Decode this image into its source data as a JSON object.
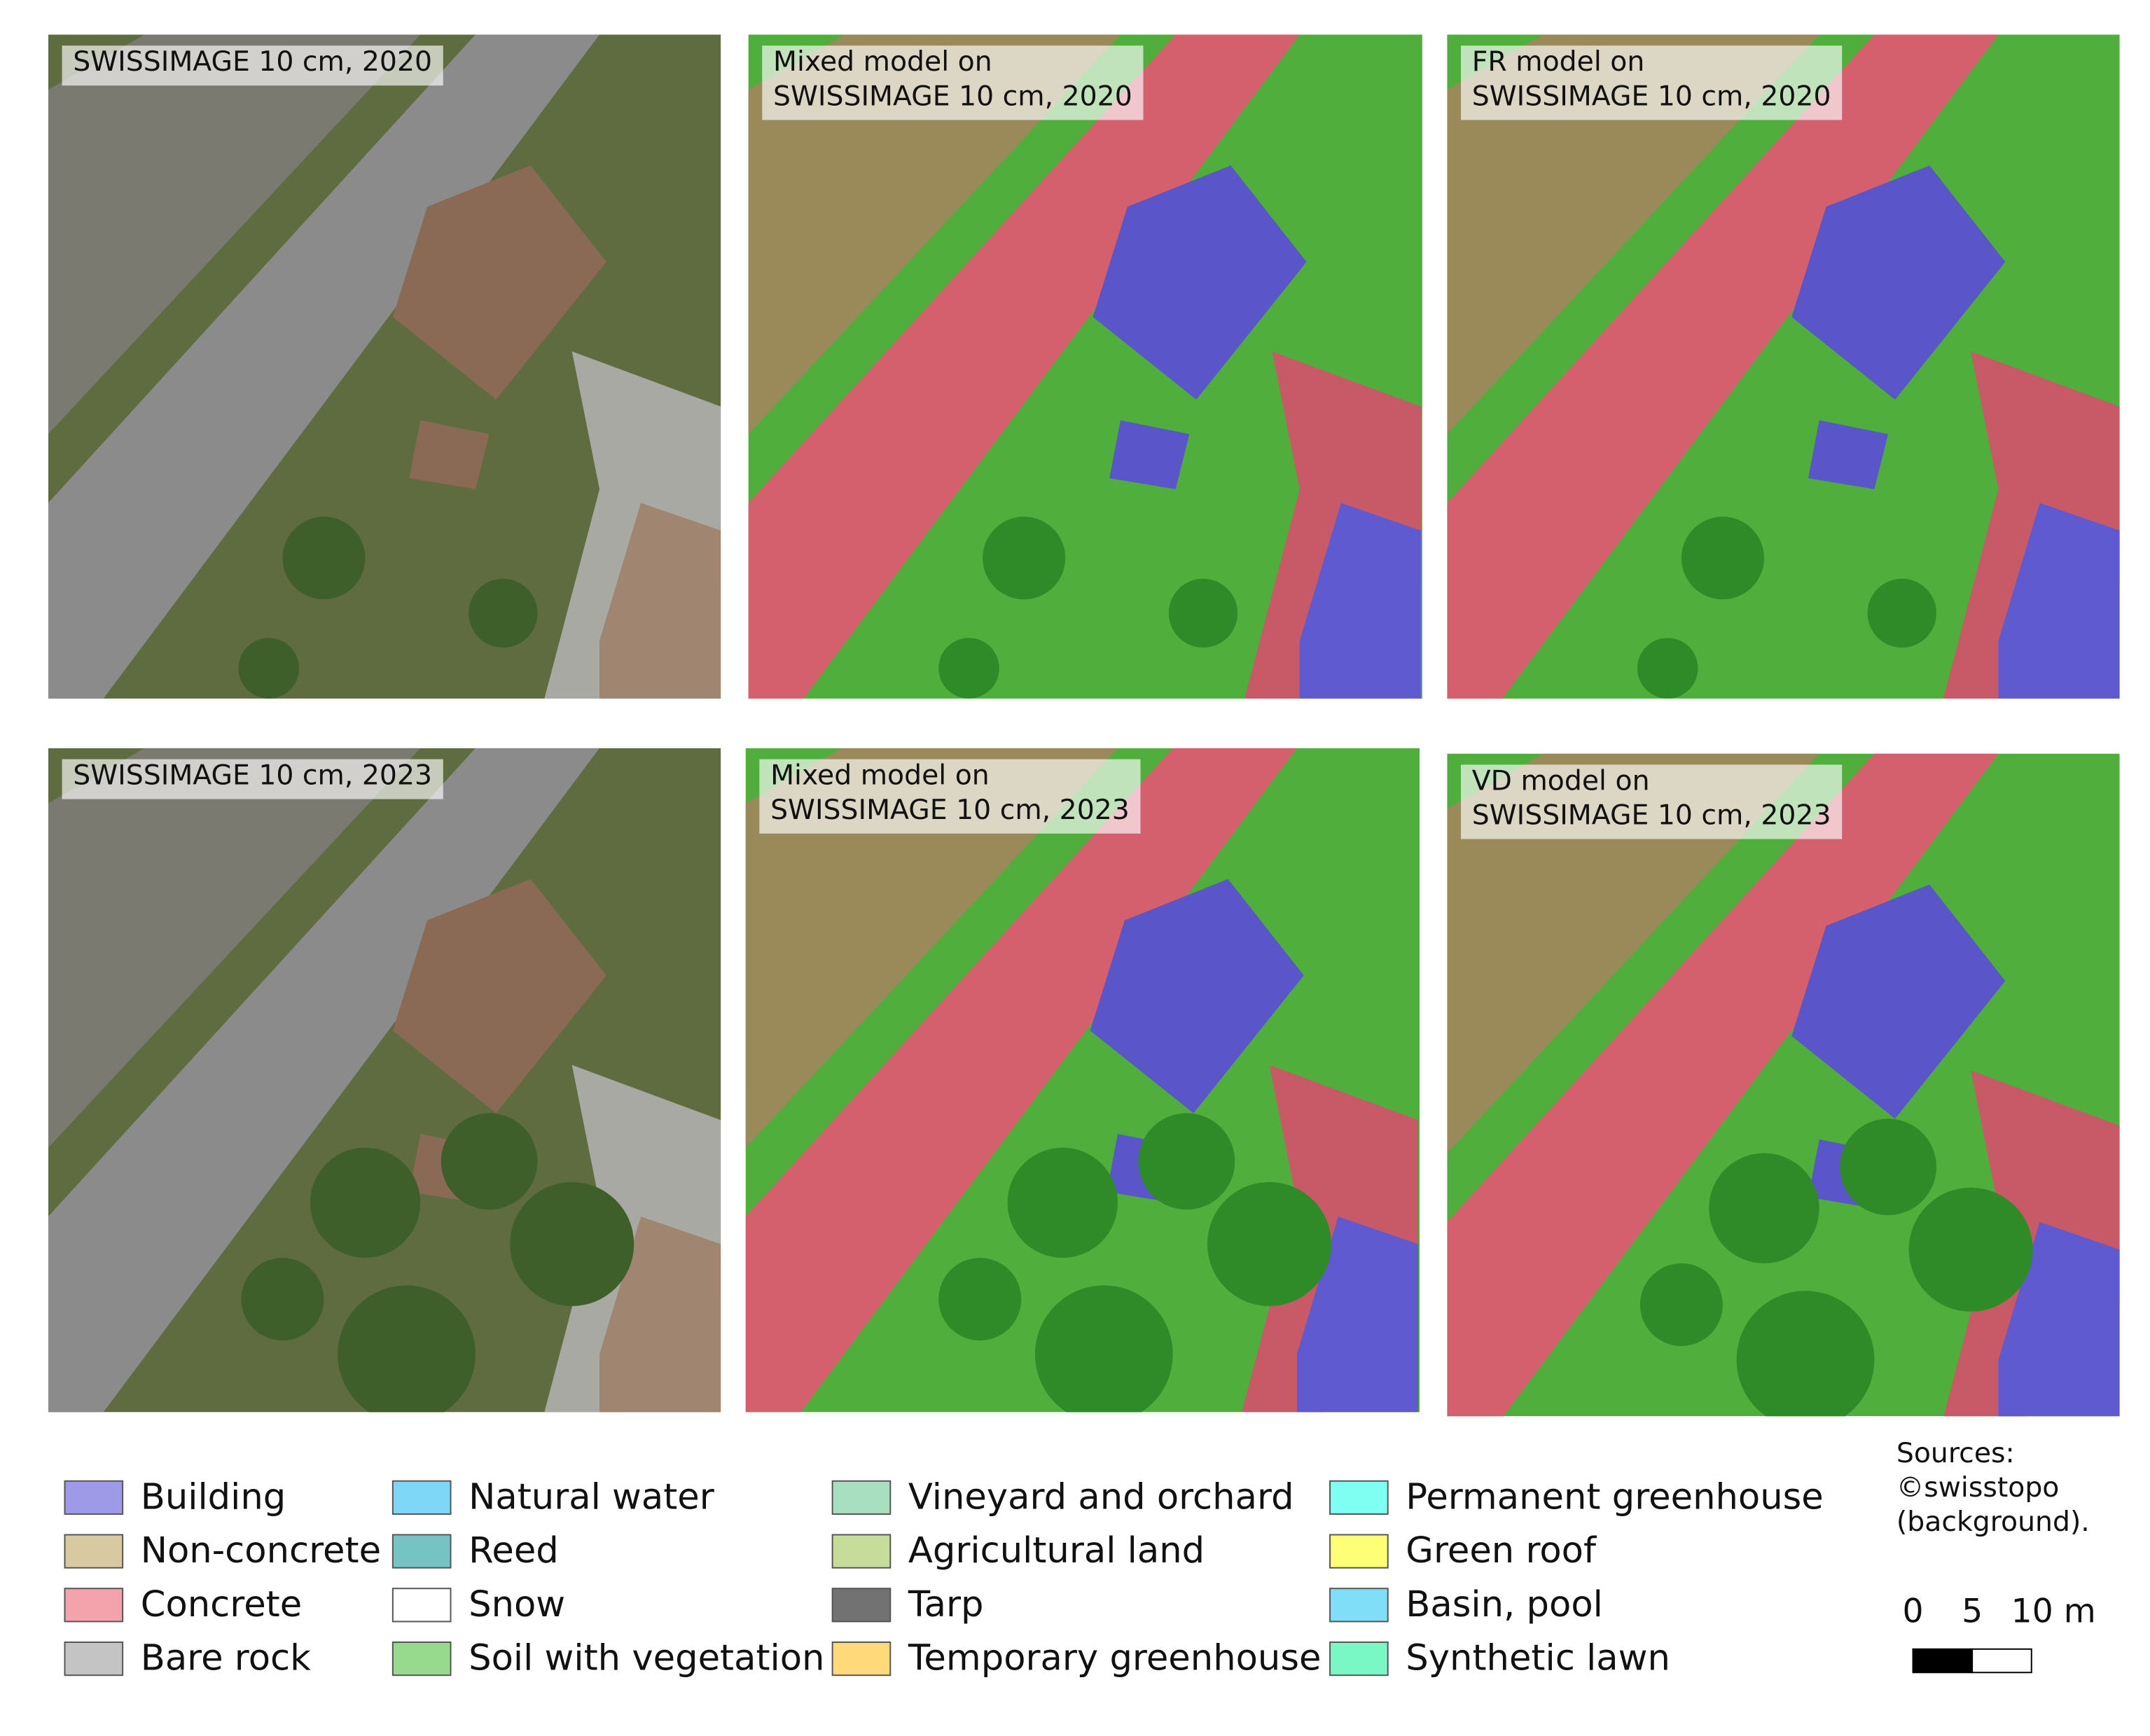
{
  "panels": [
    {
      "label_lines": [
        "SWISSIMAGE 10 cm, 2020"
      ],
      "kind": "photo"
    },
    {
      "label_lines": [
        "Mixed model on",
        "SWISSIMAGE 10 cm, 2020"
      ],
      "kind": "segmentation"
    },
    {
      "label_lines": [
        "FR model on",
        "SWISSIMAGE 10 cm, 2020"
      ],
      "kind": "segmentation"
    },
    {
      "label_lines": [
        "SWISSIMAGE 10 cm, 2023"
      ],
      "kind": "photo"
    },
    {
      "label_lines": [
        "Mixed model on",
        "SWISSIMAGE 10 cm, 2023"
      ],
      "kind": "segmentation"
    },
    {
      "label_lines": [
        "VD model on",
        "SWISSIMAGE 10 cm, 2023"
      ],
      "kind": "segmentation"
    }
  ],
  "legend": [
    {
      "label": "Building",
      "color": "#9e9ae8"
    },
    {
      "label": "Non-concrete",
      "color": "#d9c9a0"
    },
    {
      "label": "Concrete",
      "color": "#f4a3ad"
    },
    {
      "label": "Bare rock",
      "color": "#c4c4c4"
    },
    {
      "label": "Natural water",
      "color": "#7fd7f7"
    },
    {
      "label": "Reed",
      "color": "#76c3c4"
    },
    {
      "label": "Snow",
      "color": "#ffffff"
    },
    {
      "label": "Soil with vegetation",
      "color": "#97d98d"
    },
    {
      "label": "Vineyard and orchard",
      "color": "#a7dfc0"
    },
    {
      "label": "Agricultural land",
      "color": "#c6dd9a"
    },
    {
      "label": "Tarp",
      "color": "#727272"
    },
    {
      "label": "Temporary greenhouse",
      "color": "#ffd97a"
    },
    {
      "label": "Permanent greenhouse",
      "color": "#7ffff2"
    },
    {
      "label": "Green roof",
      "color": "#ffff75"
    },
    {
      "label": "Basin, pool",
      "color": "#80def8"
    },
    {
      "label": "Synthetic lawn",
      "color": "#79f7c4"
    }
  ],
  "sources": [
    "Sources:",
    "©swisstopo",
    "(background)."
  ],
  "scale_bar": {
    "labels": [
      "0",
      "5",
      "10 m"
    ]
  }
}
